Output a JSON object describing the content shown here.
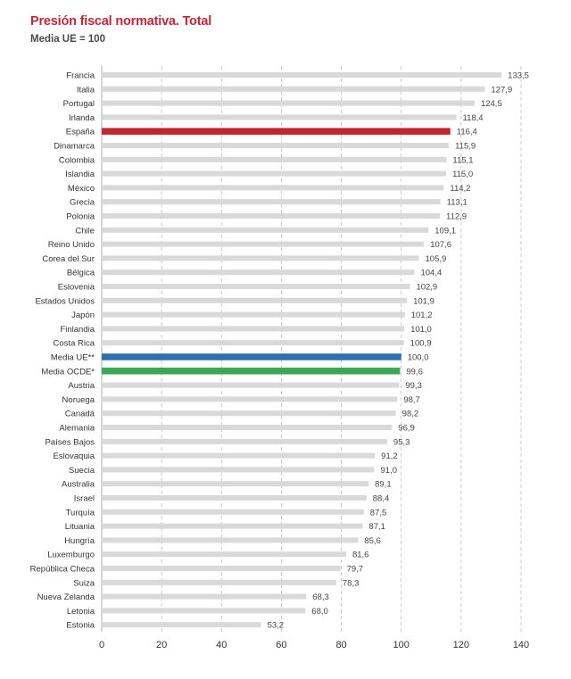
{
  "chart_data": {
    "type": "bar",
    "orientation": "horizontal",
    "title": "Presión fiscal normativa. Total",
    "subtitle": "Media UE = 100",
    "categories": [
      "Francia",
      "Italia",
      "Portugal",
      "Irlanda",
      "España",
      "Dinamarca",
      "Colombia",
      "Islandia",
      "México",
      "Grecia",
      "Polonia",
      "Chile",
      "Reino Unido",
      "Corea del Sur",
      "Bélgica",
      "Eslovenia",
      "Estados Unidos",
      "Japón",
      "Finlandia",
      "Costa Rica",
      "Media UE**",
      "Media OCDE*",
      "Austria",
      "Noruega",
      "Canadá",
      "Alemania",
      "Países Bajos",
      "Eslovaquia",
      "Suecia",
      "Australia",
      "Israel",
      "Turquía",
      "Lituania",
      "Hungría",
      "Luxemburgo",
      "República Checa",
      "Suiza",
      "Nueva Zelanda",
      "Letonia",
      "Estonia"
    ],
    "values": [
      133.5,
      127.9,
      124.5,
      118.4,
      116.4,
      115.9,
      115.1,
      115.0,
      114.2,
      113.1,
      112.9,
      109.1,
      107.6,
      105.9,
      104.4,
      102.9,
      101.9,
      101.2,
      101.0,
      100.9,
      100.0,
      99.6,
      99.3,
      98.7,
      98.2,
      96.9,
      95.3,
      91.2,
      91.0,
      89.1,
      88.4,
      87.5,
      87.1,
      85.6,
      81.6,
      79.7,
      78.3,
      68.3,
      68.0,
      53.2
    ],
    "value_labels": [
      "133,5",
      "127,9",
      "124,5",
      "118,4",
      "116,4",
      "115,9",
      "115,1",
      "115,0",
      "114,2",
      "113,1",
      "112,9",
      "109,1",
      "107,6",
      "105,9",
      "104,4",
      "102,9",
      "101,9",
      "101,2",
      "101,0",
      "100,9",
      "100,0",
      "99,6",
      "99,3",
      "98,7",
      "98,2",
      "96,9",
      "95,3",
      "91,2",
      "91,0",
      "89,1",
      "88,4",
      "87,5",
      "87,1",
      "85,6",
      "81,6",
      "79,7",
      "78,3",
      "68,3",
      "68,0",
      "53,2"
    ],
    "highlights": {
      "España": "#c0282d",
      "Media UE**": "#2e6fb0",
      "Media OCDE*": "#3aa853"
    },
    "default_color": "#d9d9d9",
    "xlim": [
      0,
      140
    ],
    "xticks": [
      "0",
      "20",
      "40",
      "60",
      "80",
      "100",
      "120",
      "140"
    ],
    "xtick_values": [
      0,
      20,
      40,
      60,
      80,
      100,
      120,
      140
    ],
    "grid": "vertical dashed"
  }
}
